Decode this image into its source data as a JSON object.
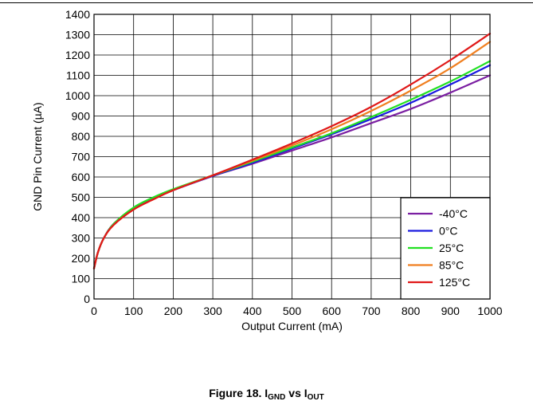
{
  "chart_data": {
    "type": "line",
    "title": "",
    "xlabel": "Output Current (mA)",
    "ylabel": "GND Pin Current (µA)",
    "xlim": [
      0,
      1000
    ],
    "ylim": [
      0,
      1400
    ],
    "x_ticks": [
      "0",
      "100",
      "200",
      "300",
      "400",
      "500",
      "600",
      "700",
      "800",
      "900",
      "1000"
    ],
    "y_ticks": [
      "0",
      "100",
      "200",
      "300",
      "400",
      "500",
      "600",
      "700",
      "800",
      "900",
      "1000",
      "1100",
      "1200",
      "1300",
      "1400"
    ],
    "grid": true,
    "legend_position": "bottom-right",
    "series": [
      {
        "name": "-40°C",
        "color": "#7b1fa2",
        "x": [
          0,
          10,
          25,
          50,
          100,
          150,
          200,
          300,
          400,
          500,
          600,
          700,
          800,
          900,
          1000
        ],
        "y": [
          150,
          230,
          300,
          370,
          445,
          495,
          535,
          605,
          665,
          730,
          795,
          865,
          935,
          1015,
          1100
        ]
      },
      {
        "name": "0°C",
        "color": "#1a1adf",
        "x": [
          0,
          10,
          25,
          50,
          100,
          150,
          200,
          300,
          400,
          500,
          600,
          700,
          800,
          900,
          1000
        ],
        "y": [
          150,
          230,
          300,
          370,
          445,
          495,
          535,
          605,
          670,
          740,
          810,
          885,
          965,
          1055,
          1150
        ]
      },
      {
        "name": "25°C",
        "color": "#22e022",
        "x": [
          0,
          10,
          25,
          50,
          100,
          150,
          200,
          300,
          400,
          500,
          600,
          700,
          800,
          900,
          1000
        ],
        "y": [
          150,
          230,
          300,
          370,
          450,
          500,
          540,
          608,
          675,
          745,
          815,
          895,
          980,
          1070,
          1170
        ]
      },
      {
        "name": "85°C",
        "color": "#f07f20",
        "x": [
          0,
          10,
          25,
          50,
          100,
          150,
          200,
          300,
          400,
          500,
          600,
          700,
          800,
          900,
          1000
        ],
        "y": [
          150,
          230,
          300,
          365,
          440,
          490,
          535,
          608,
          680,
          755,
          835,
          925,
          1025,
          1135,
          1265
        ]
      },
      {
        "name": "125°C",
        "color": "#e01818",
        "x": [
          0,
          10,
          25,
          50,
          100,
          150,
          200,
          300,
          400,
          500,
          600,
          700,
          800,
          900,
          1000
        ],
        "y": [
          150,
          230,
          300,
          365,
          440,
          490,
          535,
          608,
          685,
          765,
          850,
          945,
          1055,
          1175,
          1305
        ]
      }
    ]
  },
  "caption": {
    "label": "Figure 18. I",
    "sub1": "GND",
    "mid": " vs I",
    "sub2": "OUT"
  }
}
